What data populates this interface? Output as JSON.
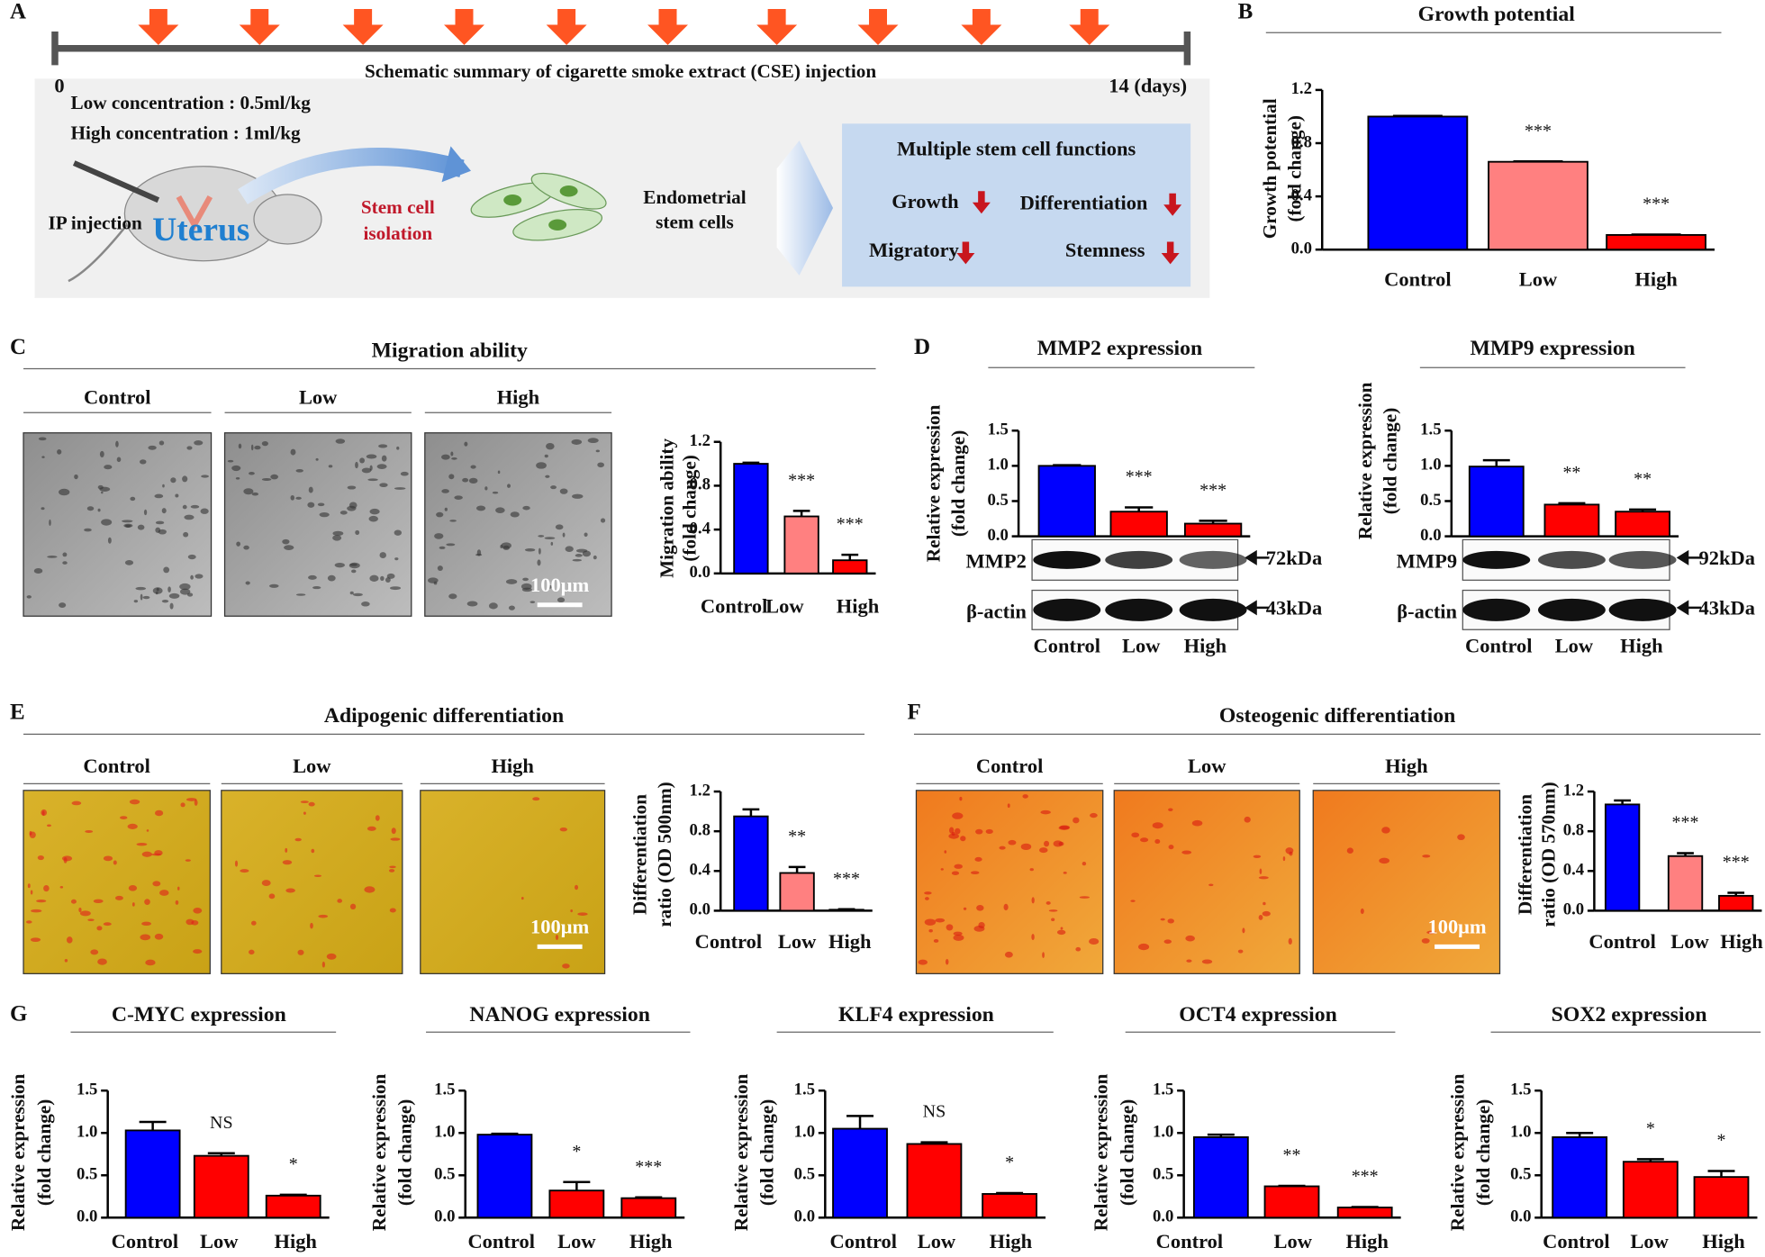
{
  "panel_labels": [
    "A",
    "B",
    "C",
    "D",
    "E",
    "F",
    "G"
  ],
  "schematic": {
    "title": "Schematic summary of cigarette smoke extract (CSE) injection",
    "start": "0",
    "end": "14 (days)",
    "doses": [
      "Low concentration : 0.5ml/kg",
      "High concentration : 1ml/kg"
    ],
    "injection": "IP injection",
    "organ": "Uterus",
    "isolation": [
      "Stem cell",
      "isolation"
    ],
    "cells": [
      "Endometrial",
      "stem cells"
    ],
    "functions_title": "Multiple stem cell functions",
    "functions": [
      "Growth",
      "Differentiation",
      "Migratory",
      "Stemness"
    ]
  },
  "micrographs": [
    {
      "title": "Migration ability",
      "labels": [
        "Control",
        "Low",
        "High"
      ],
      "scale": "100μm"
    },
    {
      "title": "Adipogenic differentiation",
      "labels": [
        "Control",
        "Low",
        "High"
      ],
      "scale": "100μm"
    },
    {
      "title": "Osteogenic differentiation",
      "labels": [
        "Control",
        "Low",
        "High"
      ],
      "scale": "100μm"
    }
  ],
  "blots": [
    {
      "bands": [
        "MMP2",
        "β-actin"
      ],
      "sizes": [
        "72kDa",
        "43kDa"
      ]
    },
    {
      "bands": [
        "MMP9",
        "β-actin"
      ],
      "sizes": [
        "92kDa",
        "43kDa"
      ]
    }
  ],
  "chart_data": [
    {
      "type": "bar",
      "title": "Growth potential",
      "y_label": [
        "Growth potential",
        "(fold change)"
      ],
      "categories": [
        "Control",
        "Low",
        "High"
      ],
      "values": [
        1.0,
        0.66,
        0.11
      ],
      "errors": [
        0.005,
        0.003,
        0.003
      ],
      "colors": [
        "#0000ff",
        "#ff8080",
        "#ff0000"
      ],
      "annotations": [
        null,
        "***",
        "***"
      ],
      "ylim": [
        0,
        1.2
      ],
      "yticks": [
        {
          "value": 0,
          "label": "0.0"
        },
        {
          "value": 0.4,
          "label": "0.4"
        },
        {
          "value": 0.8,
          "label": "0.8"
        },
        {
          "value": 1.2,
          "label": "1.2"
        }
      ]
    },
    {
      "type": "bar",
      "y_label": [
        "Migration ability",
        "(fold change)"
      ],
      "categories": [
        "Control",
        "Low",
        "High"
      ],
      "values": [
        1.0,
        0.52,
        0.12
      ],
      "errors": [
        0.01,
        0.05,
        0.05
      ],
      "colors": [
        "#0000ff",
        "#ff8080",
        "#ff0000"
      ],
      "annotations": [
        null,
        "***",
        "***"
      ],
      "ylim": [
        0,
        1.2
      ],
      "yticks": [
        {
          "value": 0,
          "label": "0.0"
        },
        {
          "value": 0.4,
          "label": "0.4"
        },
        {
          "value": 0.8,
          "label": "0.8"
        },
        {
          "value": 1.2,
          "label": "1.2"
        }
      ]
    },
    {
      "type": "bar",
      "title": "MMP2 expression",
      "y_label": [
        "Relative expression",
        "(fold change)"
      ],
      "categories": [
        "Control",
        "Low",
        "High"
      ],
      "values": [
        1.0,
        0.35,
        0.18
      ],
      "errors": [
        0.01,
        0.06,
        0.04
      ],
      "colors": [
        "#0000ff",
        "#ff0000",
        "#ff0000"
      ],
      "annotations": [
        null,
        "***",
        "***"
      ],
      "ylim": [
        0,
        1.5
      ],
      "yticks": [
        {
          "value": 0,
          "label": "0.0"
        },
        {
          "value": 0.5,
          "label": "0.5"
        },
        {
          "value": 1.0,
          "label": "1.0"
        },
        {
          "value": 1.5,
          "label": "1.5"
        }
      ]
    },
    {
      "type": "bar",
      "title": "MMP9 expression",
      "y_label": [
        "Relative expression",
        "(fold change)"
      ],
      "categories": [
        "Control",
        "Low",
        "High"
      ],
      "values": [
        0.99,
        0.45,
        0.35
      ],
      "errors": [
        0.09,
        0.02,
        0.03
      ],
      "colors": [
        "#0000ff",
        "#ff0000",
        "#ff0000"
      ],
      "annotations": [
        null,
        "**",
        "**"
      ],
      "ylim": [
        0,
        1.5
      ],
      "yticks": [
        {
          "value": 0,
          "label": "0.0"
        },
        {
          "value": 0.5,
          "label": "0.5"
        },
        {
          "value": 1.0,
          "label": "1.0"
        },
        {
          "value": 1.5,
          "label": "1.5"
        }
      ]
    },
    {
      "type": "bar",
      "y_label": [
        "Differentiation",
        "ratio (OD 500nm)"
      ],
      "categories": [
        "Control",
        "Low",
        "High"
      ],
      "values": [
        0.95,
        0.38,
        0.01
      ],
      "errors": [
        0.07,
        0.06,
        0.005
      ],
      "colors": [
        "#0000ff",
        "#ff8080",
        "#ff0000"
      ],
      "annotations": [
        null,
        "**",
        "***"
      ],
      "ylim": [
        0,
        1.2
      ],
      "yticks": [
        {
          "value": 0,
          "label": "0.0"
        },
        {
          "value": 0.4,
          "label": "0.4"
        },
        {
          "value": 0.8,
          "label": "0.8"
        },
        {
          "value": 1.2,
          "label": "1.2"
        }
      ]
    },
    {
      "type": "bar",
      "y_label": [
        "Differentiation",
        "ratio (OD 570nm)"
      ],
      "categories": [
        "Control",
        "Low",
        "High"
      ],
      "values": [
        1.07,
        0.55,
        0.15
      ],
      "errors": [
        0.04,
        0.03,
        0.03
      ],
      "colors": [
        "#0000ff",
        "#ff8080",
        "#ff0000"
      ],
      "annotations": [
        null,
        "***",
        "***"
      ],
      "ylim": [
        0,
        1.2
      ],
      "yticks": [
        {
          "value": 0,
          "label": "0.0"
        },
        {
          "value": 0.4,
          "label": "0.4"
        },
        {
          "value": 0.8,
          "label": "0.8"
        },
        {
          "value": 1.2,
          "label": "1.2"
        }
      ]
    },
    {
      "type": "bar",
      "title": "C-MYC expression",
      "y_label": [
        "Relative expression",
        "(fold change)"
      ],
      "categories": [
        "Control",
        "Low",
        "High"
      ],
      "values": [
        1.03,
        0.73,
        0.26
      ],
      "errors": [
        0.1,
        0.03,
        0.01
      ],
      "colors": [
        "#0000ff",
        "#ff0000",
        "#ff0000"
      ],
      "annotations": [
        null,
        "NS",
        "*"
      ],
      "ylim": [
        0,
        1.5
      ],
      "yticks": [
        {
          "value": 0,
          "label": "0.0"
        },
        {
          "value": 0.5,
          "label": "0.5"
        },
        {
          "value": 1.0,
          "label": "1.0"
        },
        {
          "value": 1.5,
          "label": "1.5"
        }
      ]
    },
    {
      "type": "bar",
      "title": "NANOG expression",
      "y_label": [
        "Relative expression",
        "(fold change)"
      ],
      "categories": [
        "Control",
        "Low",
        "High"
      ],
      "values": [
        0.98,
        0.32,
        0.23
      ],
      "errors": [
        0.01,
        0.1,
        0.01
      ],
      "colors": [
        "#0000ff",
        "#ff0000",
        "#ff0000"
      ],
      "annotations": [
        null,
        "*",
        "***"
      ],
      "ylim": [
        0,
        1.5
      ],
      "yticks": [
        {
          "value": 0,
          "label": "0.0"
        },
        {
          "value": 0.5,
          "label": "0.5"
        },
        {
          "value": 1.0,
          "label": "1.0"
        },
        {
          "value": 1.5,
          "label": "1.5"
        }
      ]
    },
    {
      "type": "bar",
      "title": "KLF4 expression",
      "y_label": [
        "Relative expression",
        "(fold change)"
      ],
      "categories": [
        "Control",
        "Low",
        "High"
      ],
      "values": [
        1.05,
        0.87,
        0.28
      ],
      "errors": [
        0.15,
        0.02,
        0.01
      ],
      "colors": [
        "#0000ff",
        "#ff0000",
        "#ff0000"
      ],
      "annotations": [
        null,
        "NS",
        "*"
      ],
      "ylim": [
        0,
        1.5
      ],
      "yticks": [
        {
          "value": 0,
          "label": "0.0"
        },
        {
          "value": 0.5,
          "label": "0.5"
        },
        {
          "value": 1.0,
          "label": "1.0"
        },
        {
          "value": 1.5,
          "label": "1.5"
        }
      ]
    },
    {
      "type": "bar",
      "title": "OCT4 expression",
      "y_label": [
        "Relative expression",
        "(fold change)"
      ],
      "categories": [
        "Control",
        "Low",
        "High"
      ],
      "values": [
        0.95,
        0.37,
        0.12
      ],
      "errors": [
        0.03,
        0.005,
        0.005
      ],
      "colors": [
        "#0000ff",
        "#ff0000",
        "#ff0000"
      ],
      "annotations": [
        null,
        "**",
        "***"
      ],
      "ylim": [
        0,
        1.5
      ],
      "yticks": [
        {
          "value": 0,
          "label": "0.0"
        },
        {
          "value": 0.5,
          "label": "0.5"
        },
        {
          "value": 1.0,
          "label": "1.0"
        },
        {
          "value": 1.5,
          "label": "1.5"
        }
      ]
    },
    {
      "type": "bar",
      "title": "SOX2 expression",
      "y_label": [
        "Relative expression",
        "(fold change)"
      ],
      "categories": [
        "Control",
        "Low",
        "High"
      ],
      "values": [
        0.95,
        0.66,
        0.48
      ],
      "errors": [
        0.05,
        0.03,
        0.07
      ],
      "colors": [
        "#0000ff",
        "#ff0000",
        "#ff0000"
      ],
      "annotations": [
        null,
        "*",
        "*"
      ],
      "ylim": [
        0,
        1.5
      ],
      "yticks": [
        {
          "value": 0,
          "label": "0.0"
        },
        {
          "value": 0.5,
          "label": "0.5"
        },
        {
          "value": 1.0,
          "label": "1.0"
        },
        {
          "value": 1.5,
          "label": "1.5"
        }
      ]
    }
  ]
}
